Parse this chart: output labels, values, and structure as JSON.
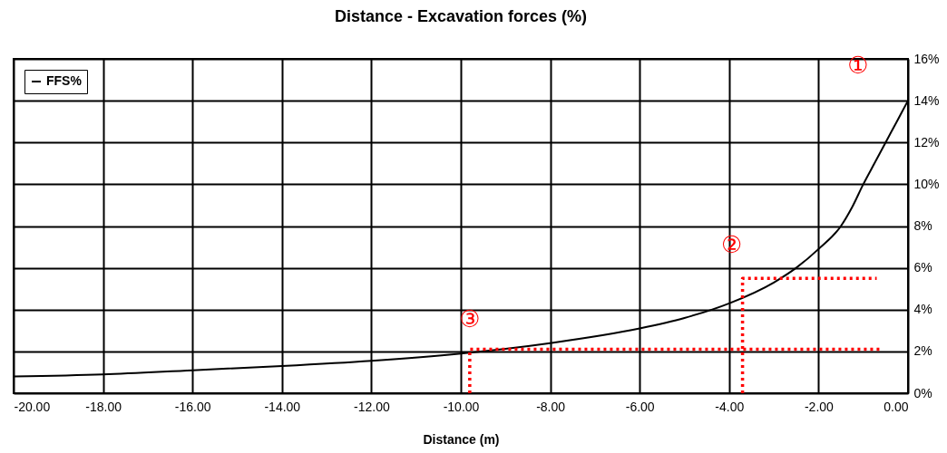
{
  "chart_data": {
    "type": "line",
    "title": "Distance - Excavation forces (%)",
    "xlabel": "Distance (m)",
    "series": [
      {
        "name": "FFS%",
        "color": "#000000",
        "x": [
          -20,
          -18,
          -16,
          -14,
          -12,
          -10,
          -8,
          -6,
          -5,
          -4,
          -3,
          -2.5,
          -2,
          -1.5,
          -1.25,
          -1,
          -0.75,
          -0.5,
          -0.25,
          0
        ],
        "values": [
          0.8,
          0.9,
          1.1,
          1.3,
          1.55,
          1.9,
          2.4,
          3.1,
          3.6,
          4.3,
          5.3,
          6.0,
          6.9,
          8.0,
          8.9,
          10.0,
          11.0,
          12.0,
          13.0,
          14.0
        ]
      },
      {
        "color": "#ff0000",
        "line_style": "dotted",
        "x": [
          -9.8,
          -9.8,
          -0.6
        ],
        "values": [
          0,
          2.1,
          2.1
        ]
      },
      {
        "color": "#ff0000",
        "line_style": "dotted",
        "x": [
          -3.7,
          -3.7,
          -0.7
        ],
        "values": [
          0,
          5.5,
          5.5
        ]
      }
    ],
    "annotations": [
      {
        "text": "①",
        "x": 0,
        "y": 14.0
      },
      {
        "text": "②",
        "x": -3.7,
        "y": 5.5
      },
      {
        "text": "③",
        "x": -9.8,
        "y": 2.1
      }
    ],
    "xlim": [
      -20,
      0
    ],
    "xticks": [
      {
        "value": -20,
        "label": "-20.00"
      },
      {
        "value": -18,
        "label": "-18.00"
      },
      {
        "value": -16,
        "label": "-16.00"
      },
      {
        "value": -14,
        "label": "-14.00"
      },
      {
        "value": -12,
        "label": "-12.00"
      },
      {
        "value": -10,
        "label": "-10.00"
      },
      {
        "value": -8,
        "label": "-8.00"
      },
      {
        "value": -6,
        "label": "-6.00"
      },
      {
        "value": -4,
        "label": "-4.00"
      },
      {
        "value": -2,
        "label": "-2.00"
      },
      {
        "value": 0,
        "label": "0.00"
      }
    ],
    "ylim": [
      0,
      16
    ],
    "yticks": [
      {
        "value": 0,
        "label": "0%"
      },
      {
        "value": 2,
        "label": "2%"
      },
      {
        "value": 4,
        "label": "4%"
      },
      {
        "value": 6,
        "label": "6%"
      },
      {
        "value": 8,
        "label": "8%"
      },
      {
        "value": 10,
        "label": "10%"
      },
      {
        "value": 12,
        "label": "12%"
      },
      {
        "value": 14,
        "label": "14%"
      },
      {
        "value": 16,
        "label": "16%"
      }
    ],
    "grid": true,
    "legend": "top left",
    "marker": "none",
    "line_style": "solid"
  }
}
